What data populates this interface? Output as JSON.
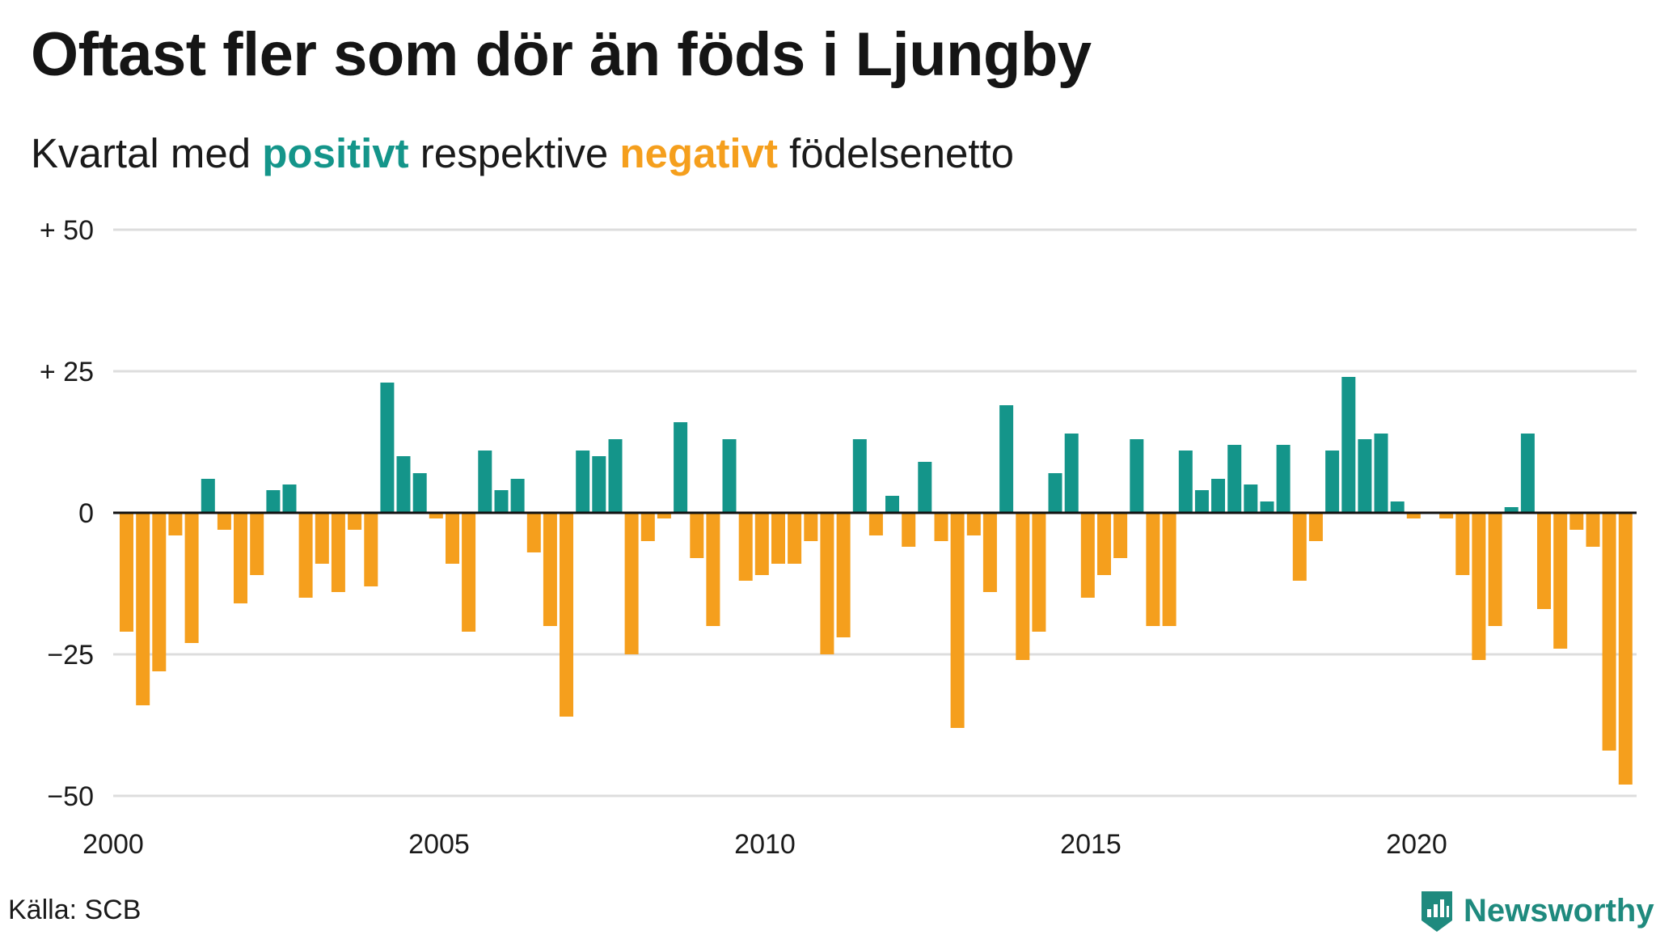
{
  "title": "Oftast fler som dör än föds i Ljungby",
  "subtitle": {
    "before": "Kvartal med ",
    "positive": "positivt",
    "middle": " respektive ",
    "negative": "negativt",
    "after": " födelsenetto"
  },
  "source": "Källa: SCB",
  "brand": "Newsworthy",
  "colors": {
    "positive": "#14958a",
    "negative": "#f59f1d",
    "grid": "#dddddd",
    "zero_line": "#111111"
  },
  "chart_data": {
    "type": "bar",
    "ylim": [
      -50,
      50
    ],
    "y_ticks": [
      {
        "value": 50,
        "label": "+ 50"
      },
      {
        "value": 25,
        "label": "+ 25"
      },
      {
        "value": 0,
        "label": "0"
      },
      {
        "value": -25,
        "label": "−25"
      },
      {
        "value": -50,
        "label": "−50"
      }
    ],
    "x_ticks": [
      {
        "value": 2000,
        "label": "2000"
      },
      {
        "value": 2005,
        "label": "2005"
      },
      {
        "value": 2010,
        "label": "2010"
      },
      {
        "value": 2015,
        "label": "2015"
      },
      {
        "value": 2020,
        "label": "2020"
      }
    ],
    "grid": true,
    "start_year": 2000,
    "quarters_per_year": 4,
    "values": [
      -21,
      -34,
      -28,
      -4,
      -23,
      6,
      -3,
      -16,
      -11,
      4,
      5,
      -15,
      -9,
      -14,
      -3,
      -13,
      23,
      10,
      7,
      -1,
      -9,
      -21,
      11,
      4,
      6,
      -7,
      -20,
      -36,
      11,
      10,
      13,
      -25,
      -5,
      -1,
      16,
      -8,
      -20,
      13,
      -12,
      -11,
      -9,
      -9,
      -5,
      -25,
      -22,
      13,
      -4,
      3,
      -6,
      9,
      -5,
      -38,
      -4,
      -14,
      19,
      -26,
      -21,
      7,
      14,
      -15,
      -11,
      -8,
      13,
      -20,
      -20,
      11,
      4,
      6,
      12,
      5,
      2,
      12,
      -12,
      -5,
      11,
      24,
      13,
      14,
      2,
      -1,
      0,
      -1,
      -11,
      -26,
      -20,
      1,
      14,
      -17,
      -24,
      -3,
      -6,
      -42,
      -48
    ]
  }
}
